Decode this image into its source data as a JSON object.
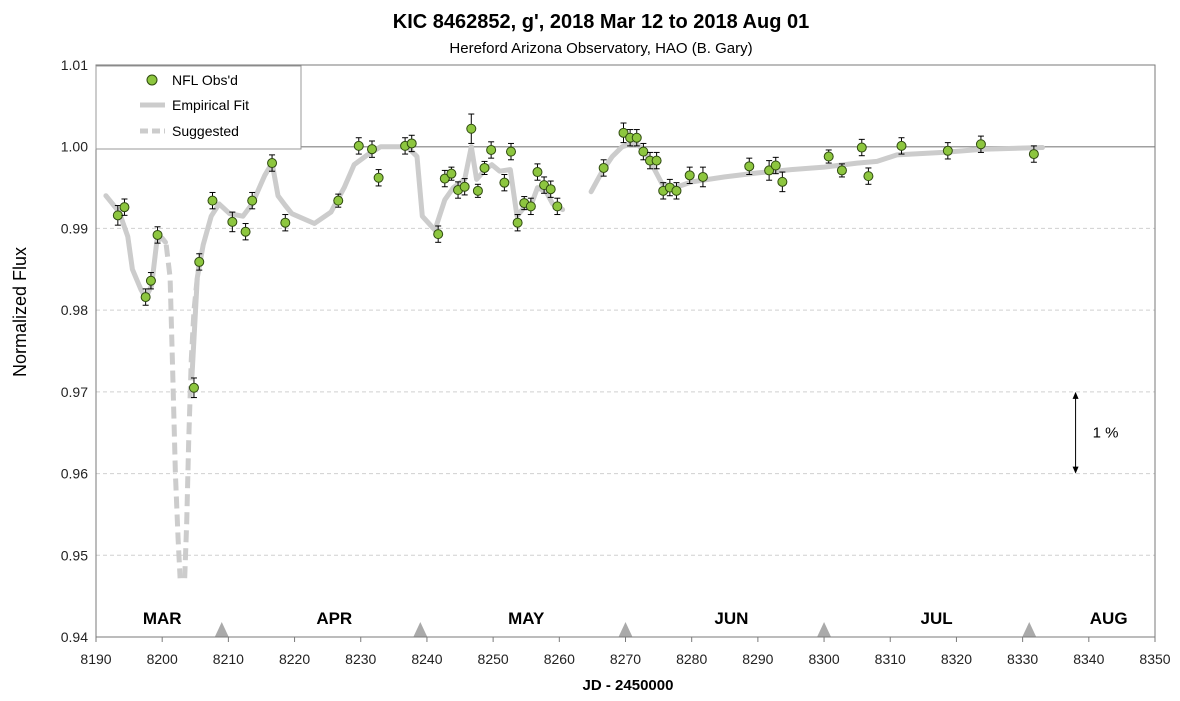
{
  "chart_data": {
    "type": "scatter",
    "title": "KIC 8462852, g', 2018 Mar 12 to 2018 Aug 01",
    "subtitle": "Hereford Arizona Observatory, HAO (B. Gary)",
    "xlabel": "JD - 2450000",
    "ylabel": "Normalized Flux",
    "xlim": [
      8190,
      8350
    ],
    "ylim": [
      0.94,
      1.01
    ],
    "xticks": [
      "8190",
      "8200",
      "8210",
      "8220",
      "8230",
      "8240",
      "8250",
      "8260",
      "8270",
      "8280",
      "8290",
      "8300",
      "8310",
      "8320",
      "8330",
      "8340",
      "8350"
    ],
    "yticks": [
      "0.94",
      "0.95",
      "0.96",
      "0.97",
      "0.98",
      "0.99",
      "1.00",
      "1.01"
    ],
    "grid": "horizontal dashed",
    "reference_line": 1.0,
    "legend": {
      "placement": "top-left",
      "entries": [
        "NFL Obs'd",
        "Empirical Fit",
        "Suggested"
      ]
    },
    "month_labels": [
      {
        "label": "MAR",
        "x": 8200
      },
      {
        "label": "APR",
        "x": 8226
      },
      {
        "label": "MAY",
        "x": 8255
      },
      {
        "label": "JUN",
        "x": 8286
      },
      {
        "label": "JUL",
        "x": 8317
      },
      {
        "label": "AUG",
        "x": 8343
      }
    ],
    "month_boundaries": [
      8209,
      8239,
      8270,
      8300,
      8331
    ],
    "scale_bar": {
      "label": "1 %",
      "x": 8338,
      "y_range": [
        0.96,
        0.97
      ]
    },
    "colors": {
      "points": "#8dc63f",
      "point_edge": "#2f4a10",
      "fit": "#cccccc",
      "grid": "#d0d0d0",
      "triangle": "#aaaaaa"
    },
    "series": [
      {
        "name": "NFL Obs'd",
        "points": [
          {
            "x": 8193.3,
            "y": 0.9916,
            "err": 0.0012
          },
          {
            "x": 8194.3,
            "y": 0.9926,
            "err": 0.001
          },
          {
            "x": 8197.5,
            "y": 0.9816,
            "err": 0.001
          },
          {
            "x": 8198.3,
            "y": 0.9836,
            "err": 0.001
          },
          {
            "x": 8199.3,
            "y": 0.9892,
            "err": 0.001
          },
          {
            "x": 8204.8,
            "y": 0.9705,
            "err": 0.0012
          },
          {
            "x": 8205.6,
            "y": 0.9859,
            "err": 0.001
          },
          {
            "x": 8207.6,
            "y": 0.9934,
            "err": 0.001
          },
          {
            "x": 8210.6,
            "y": 0.9908,
            "err": 0.0012
          },
          {
            "x": 8212.6,
            "y": 0.9896,
            "err": 0.001
          },
          {
            "x": 8213.6,
            "y": 0.9934,
            "err": 0.001
          },
          {
            "x": 8216.6,
            "y": 0.998,
            "err": 0.001
          },
          {
            "x": 8218.6,
            "y": 0.9907,
            "err": 0.001
          },
          {
            "x": 8226.6,
            "y": 0.9934,
            "err": 0.0008
          },
          {
            "x": 8229.7,
            "y": 1.0001,
            "err": 0.001
          },
          {
            "x": 8231.7,
            "y": 0.9997,
            "err": 0.001
          },
          {
            "x": 8232.7,
            "y": 0.9962,
            "err": 0.001
          },
          {
            "x": 8236.7,
            "y": 1.0001,
            "err": 0.001
          },
          {
            "x": 8237.7,
            "y": 1.0004,
            "err": 0.001
          },
          {
            "x": 8241.7,
            "y": 0.9893,
            "err": 0.001
          },
          {
            "x": 8242.7,
            "y": 0.9961,
            "err": 0.001
          },
          {
            "x": 8243.7,
            "y": 0.9967,
            "err": 0.0008
          },
          {
            "x": 8244.7,
            "y": 0.9947,
            "err": 0.001
          },
          {
            "x": 8245.7,
            "y": 0.9951,
            "err": 0.001
          },
          {
            "x": 8246.7,
            "y": 1.0022,
            "err": 0.0018
          },
          {
            "x": 8247.7,
            "y": 0.9946,
            "err": 0.0008
          },
          {
            "x": 8248.7,
            "y": 0.9974,
            "err": 0.0008
          },
          {
            "x": 8249.7,
            "y": 0.9996,
            "err": 0.001
          },
          {
            "x": 8251.7,
            "y": 0.9956,
            "err": 0.001
          },
          {
            "x": 8252.7,
            "y": 0.9994,
            "err": 0.001
          },
          {
            "x": 8253.7,
            "y": 0.9907,
            "err": 0.001
          },
          {
            "x": 8254.7,
            "y": 0.9931,
            "err": 0.0008
          },
          {
            "x": 8255.7,
            "y": 0.9927,
            "err": 0.001
          },
          {
            "x": 8256.7,
            "y": 0.9969,
            "err": 0.001
          },
          {
            "x": 8257.7,
            "y": 0.9953,
            "err": 0.001
          },
          {
            "x": 8258.7,
            "y": 0.9948,
            "err": 0.001
          },
          {
            "x": 8259.7,
            "y": 0.9927,
            "err": 0.001
          },
          {
            "x": 8266.7,
            "y": 0.9974,
            "err": 0.001
          },
          {
            "x": 8269.7,
            "y": 1.0017,
            "err": 0.0012
          },
          {
            "x": 8270.7,
            "y": 1.0011,
            "err": 0.001
          },
          {
            "x": 8271.7,
            "y": 1.0011,
            "err": 0.001
          },
          {
            "x": 8272.7,
            "y": 0.9994,
            "err": 0.001
          },
          {
            "x": 8273.7,
            "y": 0.9983,
            "err": 0.001
          },
          {
            "x": 8274.7,
            "y": 0.9983,
            "err": 0.001
          },
          {
            "x": 8275.7,
            "y": 0.9946,
            "err": 0.001
          },
          {
            "x": 8276.7,
            "y": 0.995,
            "err": 0.001
          },
          {
            "x": 8277.7,
            "y": 0.9946,
            "err": 0.001
          },
          {
            "x": 8279.7,
            "y": 0.9965,
            "err": 0.001
          },
          {
            "x": 8281.7,
            "y": 0.9963,
            "err": 0.0012
          },
          {
            "x": 8288.7,
            "y": 0.9976,
            "err": 0.001
          },
          {
            "x": 8291.7,
            "y": 0.9971,
            "err": 0.0012
          },
          {
            "x": 8292.7,
            "y": 0.9977,
            "err": 0.001
          },
          {
            "x": 8293.7,
            "y": 0.9957,
            "err": 0.0012
          },
          {
            "x": 8300.7,
            "y": 0.9988,
            "err": 0.0008
          },
          {
            "x": 8302.7,
            "y": 0.9971,
            "err": 0.0008
          },
          {
            "x": 8305.7,
            "y": 0.9999,
            "err": 0.001
          },
          {
            "x": 8306.7,
            "y": 0.9964,
            "err": 0.001
          },
          {
            "x": 8311.7,
            "y": 1.0001,
            "err": 0.001
          },
          {
            "x": 8318.7,
            "y": 0.9995,
            "err": 0.001
          },
          {
            "x": 8323.7,
            "y": 1.0003,
            "err": 0.001
          },
          {
            "x": 8331.7,
            "y": 0.9991,
            "err": 0.001
          }
        ]
      },
      {
        "name": "Empirical Fit",
        "segments": [
          [
            [
              8191.5,
              0.994
            ],
            [
              8193.5,
              0.992
            ],
            [
              8194.8,
              0.989
            ],
            [
              8195.5,
              0.985
            ],
            [
              8196.8,
              0.9825
            ],
            [
              8197.5,
              0.9815
            ],
            [
              8198.4,
              0.983
            ],
            [
              8199.2,
              0.9885
            ],
            [
              8200.0,
              0.9888
            ],
            [
              8200.5,
              0.9883
            ]
          ],
          [
            [
              8204.5,
              0.972
            ],
            [
              8205.3,
              0.984
            ],
            [
              8206.2,
              0.988
            ],
            [
              8207.4,
              0.9915
            ],
            [
              8208.6,
              0.993
            ],
            [
              8210.2,
              0.9918
            ],
            [
              8212.2,
              0.9915
            ],
            [
              8213.6,
              0.993
            ],
            [
              8215.5,
              0.9965
            ],
            [
              8216.6,
              0.998
            ],
            [
              8217.5,
              0.994
            ],
            [
              8218.6,
              0.9928
            ],
            [
              8219.6,
              0.9918
            ],
            [
              8223.0,
              0.9906
            ],
            [
              8225.5,
              0.992
            ],
            [
              8227.5,
              0.995
            ],
            [
              8229.0,
              0.9978
            ],
            [
              8231.0,
              0.999
            ],
            [
              8233.0,
              1.0
            ],
            [
              8237.0,
              1.0
            ],
            [
              8238.5,
              0.9988
            ],
            [
              8239.3,
              0.9915
            ],
            [
              8241.2,
              0.9898
            ],
            [
              8242.7,
              0.9935
            ],
            [
              8244.0,
              0.995
            ],
            [
              8245.7,
              0.996
            ],
            [
              8246.7,
              1.0
            ],
            [
              8247.5,
              0.996
            ],
            [
              8248.8,
              0.9972
            ],
            [
              8249.8,
              0.9978
            ],
            [
              8251.0,
              0.997
            ],
            [
              8252.6,
              0.9972
            ],
            [
              8253.6,
              0.9915
            ],
            [
              8254.6,
              0.9925
            ],
            [
              8255.7,
              0.9928
            ],
            [
              8256.7,
              0.995
            ],
            [
              8258.0,
              0.9945
            ],
            [
              8259.0,
              0.993
            ],
            [
              8260.5,
              0.9923
            ]
          ],
          [
            [
              8264.8,
              0.9945
            ],
            [
              8266.5,
              0.997
            ],
            [
              8268.0,
              0.9988
            ],
            [
              8269.5,
              1.0
            ],
            [
              8271.5,
              1.0005
            ],
            [
              8272.8,
              0.9995
            ],
            [
              8274.0,
              0.9978
            ],
            [
              8275.5,
              0.9955
            ],
            [
              8277.5,
              0.995
            ],
            [
              8280.0,
              0.9957
            ],
            [
              8285.0,
              0.9963
            ],
            [
              8290.0,
              0.9968
            ],
            [
              8295.0,
              0.9972
            ],
            [
              8300.0,
              0.9975
            ],
            [
              8305.0,
              0.998
            ],
            [
              8308.0,
              0.9982
            ],
            [
              8311.0,
              0.999
            ],
            [
              8318.0,
              0.9993
            ],
            [
              8324.0,
              0.9997
            ],
            [
              8333.0,
              0.9999
            ]
          ]
        ]
      },
      {
        "name": "Suggested",
        "segments": [
          [
            [
              8200.6,
              0.988
            ],
            [
              8201.2,
              0.984
            ],
            [
              8201.6,
              0.972
            ],
            [
              8202.0,
              0.96
            ],
            [
              8202.4,
              0.952
            ],
            [
              8202.7,
              0.9472
            ]
          ],
          [
            [
              8203.4,
              0.9472
            ],
            [
              8203.7,
              0.954
            ],
            [
              8204.0,
              0.964
            ],
            [
              8204.4,
              0.974
            ],
            [
              8204.8,
              0.98
            ],
            [
              8205.3,
              0.984
            ],
            [
              8205.8,
              0.987
            ]
          ]
        ]
      }
    ]
  }
}
